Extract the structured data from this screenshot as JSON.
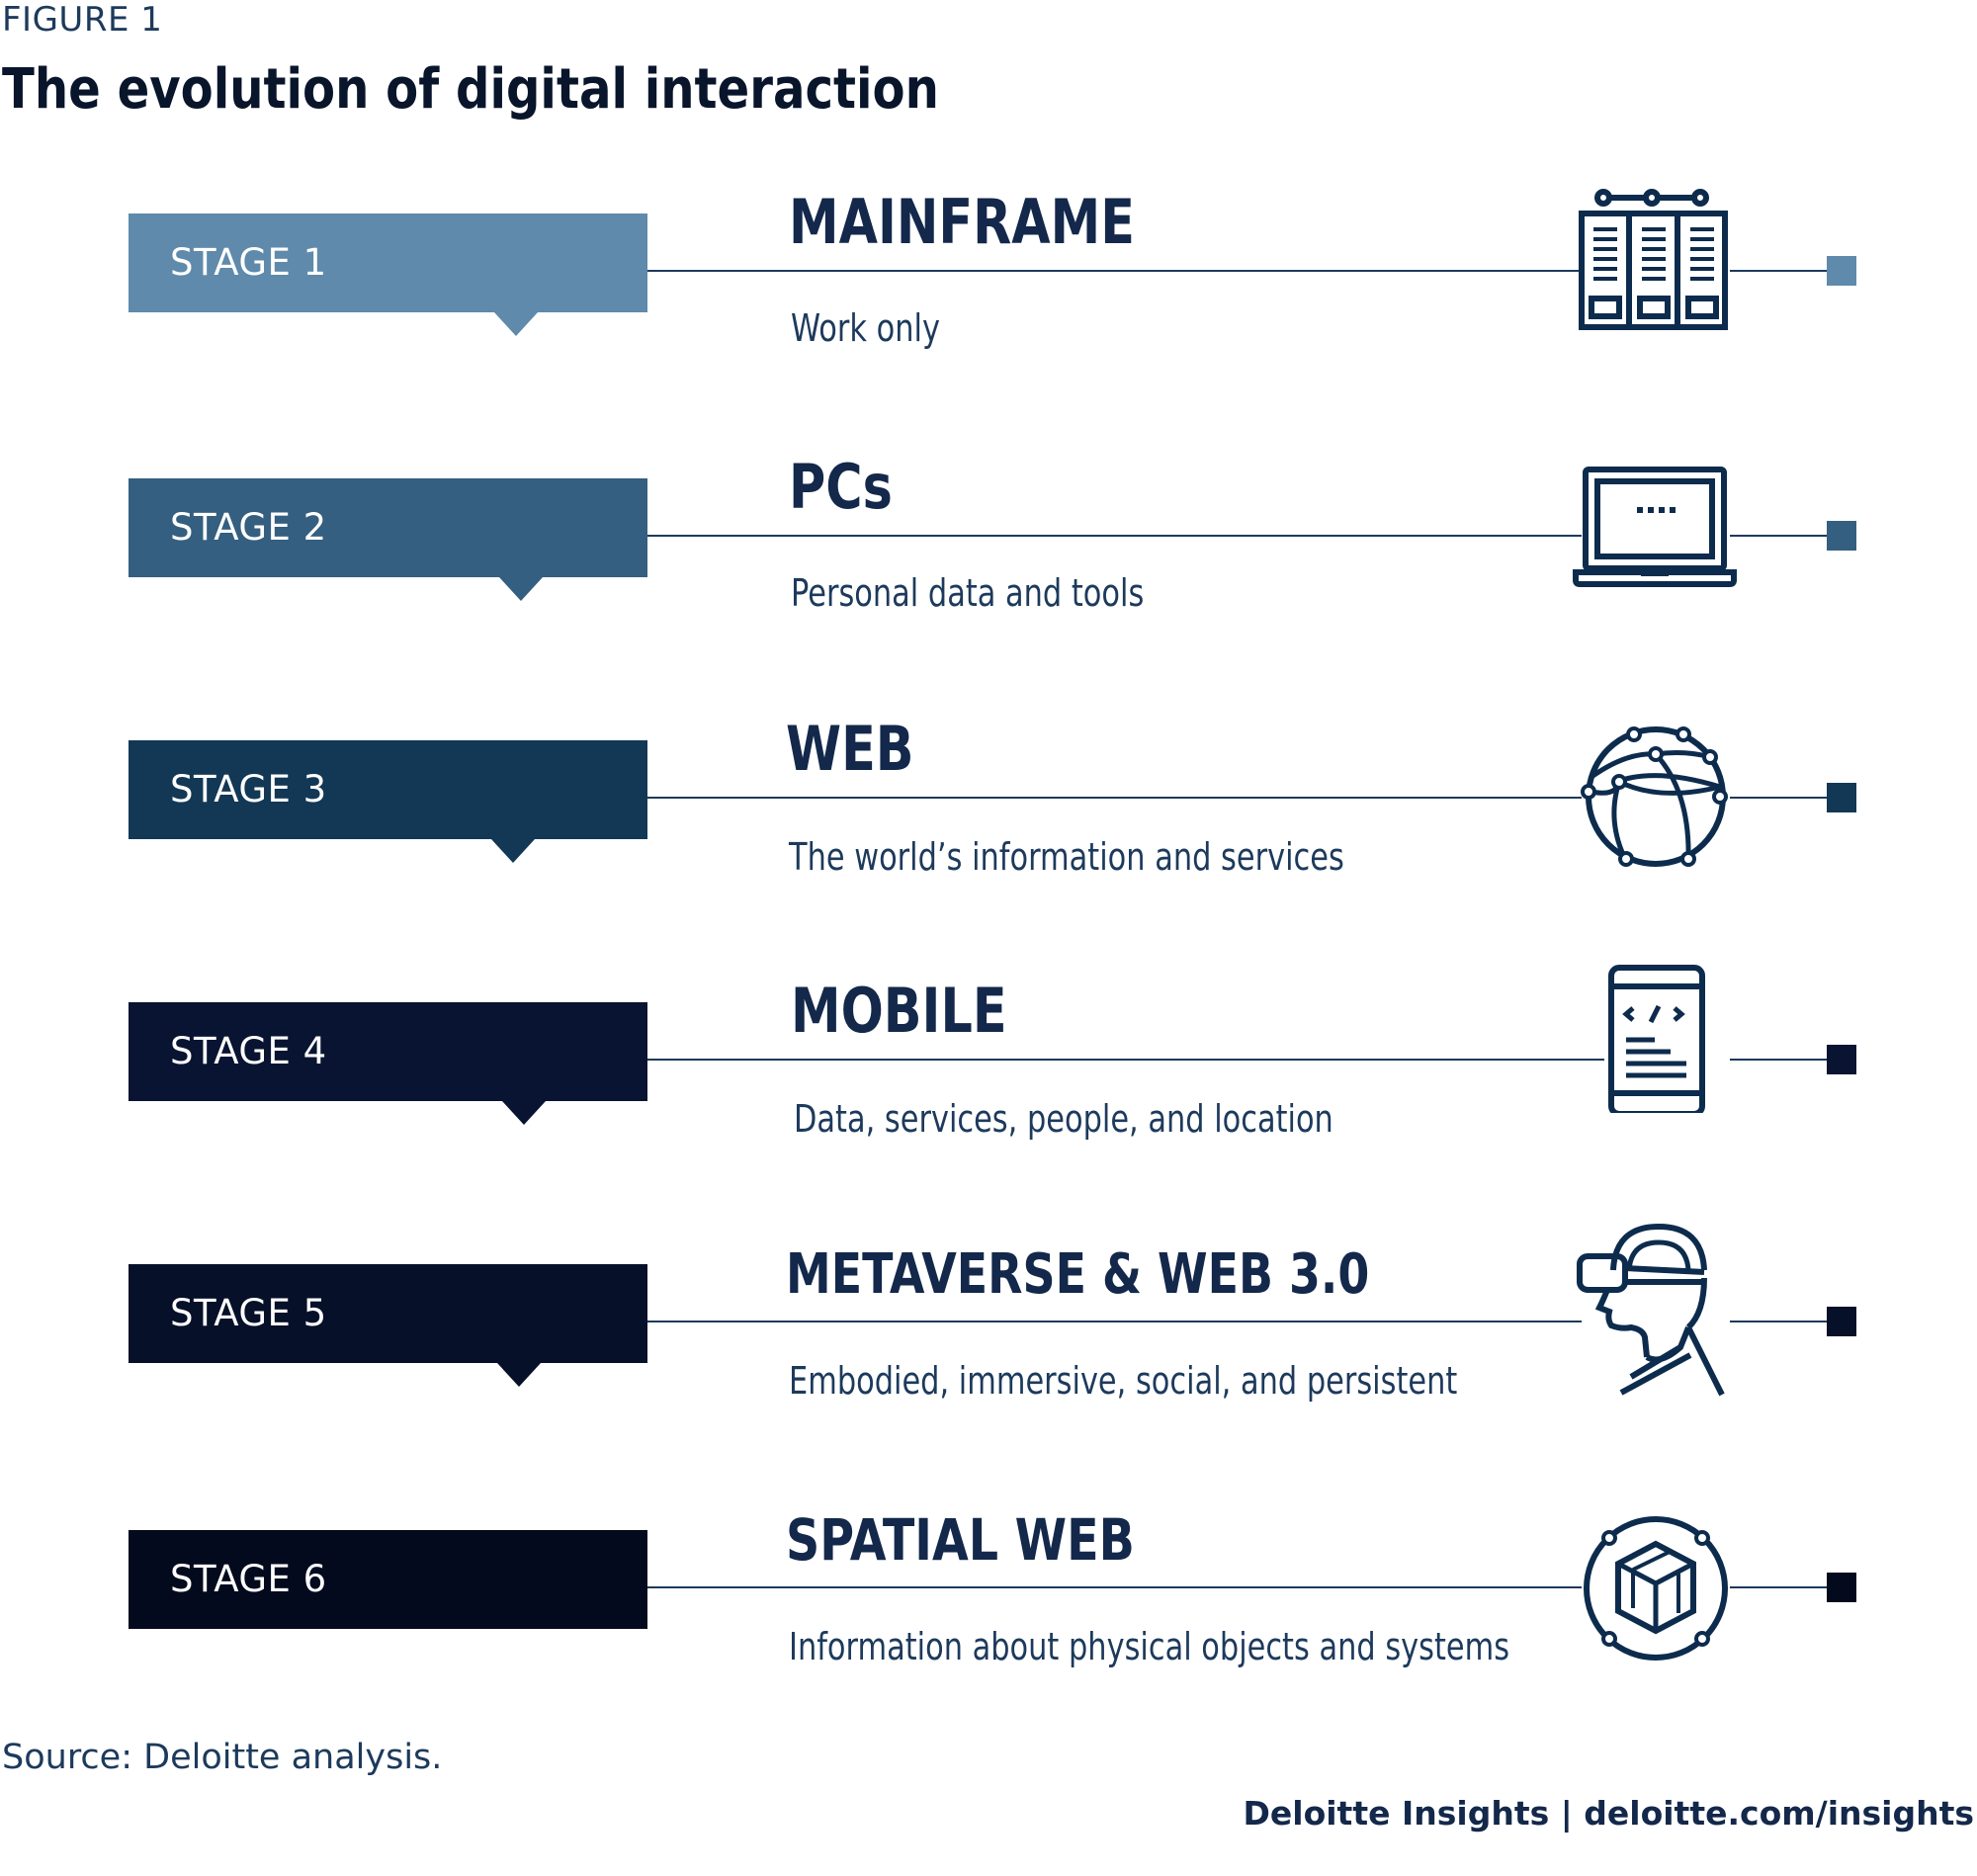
{
  "figure_label": "FIGURE 1",
  "title": "The evolution of digital interaction",
  "stages": [
    {
      "label": "STAGE 1",
      "name": "MAINFRAME",
      "description": "Work only",
      "color": "#5f8aab",
      "icon": "mainframe-server-icon"
    },
    {
      "label": "STAGE 2",
      "name": "PCs",
      "description": "Personal data and tools",
      "color": "#345f80",
      "icon": "laptop-icon"
    },
    {
      "label": "STAGE 3",
      "name": "WEB",
      "description": "The world’s information and services",
      "color": "#123856",
      "icon": "globe-network-icon"
    },
    {
      "label": "STAGE 4",
      "name": "MOBILE",
      "description": "Data, services, people, and location",
      "color": "#081431",
      "icon": "mobile-code-icon"
    },
    {
      "label": "STAGE 5",
      "name": "METAVERSE & WEB 3.0",
      "description": "Embodied, immersive, social, and persistent",
      "color": "#071029",
      "icon": "vr-headset-person-icon"
    },
    {
      "label": "STAGE 6",
      "name": "SPATIAL WEB",
      "description": "Information about physical objects and systems",
      "color": "#030a1d",
      "icon": "cube-orbit-icon"
    }
  ],
  "source": "Source: Deloitte analysis.",
  "credit": "Deloitte Insights | deloitte.com/insights"
}
